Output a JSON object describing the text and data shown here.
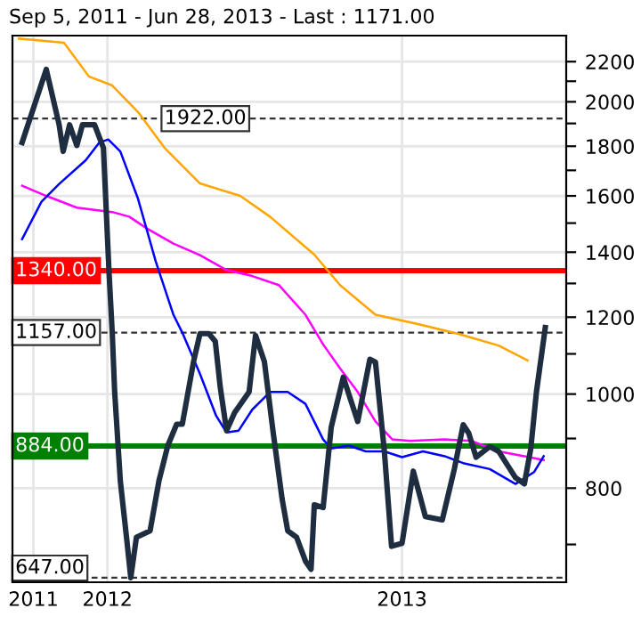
{
  "chart_data": {
    "type": "line",
    "title": "Sep 5, 2011 - Jun 28, 2013 - Last : 1171.00",
    "series": [
      {
        "color": "#ffa500",
        "x": [
          "2011-09-13",
          "2011-11-08",
          "2011-12-09",
          "2012-01-07",
          "2012-02-08",
          "2012-03-12",
          "2012-04-25",
          "2012-06-14",
          "2012-07-21",
          "2012-09-14",
          "2012-10-16",
          "2012-11-29",
          "2013-01-22",
          "2013-03-11",
          "2013-05-01",
          "2013-06-06"
        ],
        "values": [
          2324,
          2301,
          2124,
          2079,
          1952,
          1793,
          1648,
          1600,
          1523,
          1392,
          1295,
          1207,
          1180,
          1154,
          1122,
          1083
        ]
      },
      {
        "color": "#ff00ff",
        "x": [
          "2011-09-17",
          "2011-10-17",
          "2011-11-24",
          "2012-01-07",
          "2012-01-28",
          "2012-02-19",
          "2012-03-23",
          "2012-04-25",
          "2012-05-28",
          "2012-06-29",
          "2012-08-01",
          "2012-09-03",
          "2012-09-25",
          "2012-10-16",
          "2012-11-07",
          "2012-11-29",
          "2012-12-20",
          "2013-01-11",
          "2013-02-23",
          "2013-03-28",
          "2013-05-01",
          "2013-06-02",
          "2013-06-26"
        ],
        "values": [
          1639,
          1600,
          1556,
          1540,
          1523,
          1481,
          1429,
          1390,
          1342,
          1323,
          1295,
          1207,
          1125,
          1063,
          1005,
          937,
          898,
          895,
          898,
          895,
          873,
          863,
          855
        ]
      },
      {
        "color": "#0000ff",
        "x": [
          "2011-09-17",
          "2011-10-11",
          "2011-11-02",
          "2011-12-05",
          "2011-12-22",
          "2012-01-02",
          "2012-01-17",
          "2012-02-08",
          "2012-03-01",
          "2012-03-23",
          "2012-04-03",
          "2012-04-25",
          "2012-05-15",
          "2012-05-28",
          "2012-06-12",
          "2012-06-29",
          "2012-07-21",
          "2012-08-12",
          "2012-09-03",
          "2012-09-25",
          "2012-10-05",
          "2012-10-27",
          "2012-11-17",
          "2012-12-10",
          "2013-01-01",
          "2013-01-27",
          "2013-02-23",
          "2013-03-18",
          "2013-04-20",
          "2013-05-22",
          "2013-06-14",
          "2013-06-26"
        ],
        "values": [
          1444,
          1578,
          1646,
          1741,
          1816,
          1829,
          1778,
          1589,
          1370,
          1207,
          1157,
          1049,
          950,
          913,
          917,
          964,
          1005,
          1005,
          977,
          898,
          879,
          885,
          873,
          873,
          861,
          873,
          863,
          849,
          837,
          808,
          831,
          863
        ]
      },
      {
        "color": "#1e2d40",
        "x": [
          "2011-09-17",
          "2011-10-17",
          "2011-11-02",
          "2011-11-07",
          "2011-11-15",
          "2011-11-24",
          "2011-12-01",
          "2011-12-16",
          "2011-12-27",
          "2012-01-03",
          "2012-01-07",
          "2012-01-10",
          "2012-01-17",
          "2012-01-25",
          "2012-01-30",
          "2012-02-06",
          "2012-02-23",
          "2012-03-05",
          "2012-03-16",
          "2012-03-27",
          "2012-04-03",
          "2012-04-17",
          "2012-04-25",
          "2012-05-06",
          "2012-05-14",
          "2012-05-20",
          "2012-05-28",
          "2012-06-07",
          "2012-06-25",
          "2012-07-03",
          "2012-07-14",
          "2012-07-25",
          "2012-08-05",
          "2012-08-12",
          "2012-08-23",
          "2012-09-03",
          "2012-09-10",
          "2012-09-14",
          "2012-09-25",
          "2012-10-05",
          "2012-10-20",
          "2012-11-07",
          "2012-11-22",
          "2012-11-29",
          "2012-12-10",
          "2012-12-19",
          "2013-01-01",
          "2013-01-15",
          "2013-01-30",
          "2013-02-20",
          "2013-03-07",
          "2013-03-18",
          "2013-03-25",
          "2013-04-03",
          "2013-04-20",
          "2013-05-01",
          "2013-05-22",
          "2013-06-02",
          "2013-06-10",
          "2013-06-17",
          "2013-06-28"
        ],
        "values": [
          1816,
          2160,
          1894,
          1778,
          1894,
          1803,
          1894,
          1894,
          1793,
          1334,
          1155,
          1005,
          814,
          708,
          647,
          712,
          723,
          814,
          885,
          931,
          931,
          1080,
          1154,
          1154,
          1133,
          1019,
          917,
          957,
          1005,
          1149,
          1080,
          912,
          780,
          723,
          712,
          673,
          660,
          769,
          764,
          924,
          1041,
          937,
          1086,
          1079,
          874,
          697,
          702,
          833,
          748,
          742,
          837,
          930,
          911,
          861,
          883,
          873,
          820,
          808,
          879,
          1005,
          1171
        ]
      }
    ],
    "ref_lines": [
      {
        "axis": "y",
        "value": 1922,
        "label": "1922.00",
        "line_style": "dashed"
      },
      {
        "axis": "y",
        "value": 1340,
        "label": "1340.00",
        "color": "#ff0000",
        "line_style": "solid"
      },
      {
        "axis": "y",
        "value": 1157,
        "label": "1157.00",
        "line_style": "dashed"
      },
      {
        "axis": "y",
        "value": 884,
        "label": "884.00",
        "color": "#008000",
        "line_style": "solid"
      },
      {
        "axis": "y",
        "value": 647,
        "label": "647.00",
        "line_style": "dashed"
      }
    ],
    "log": "y",
    "xlim": [
      "2011-09-05",
      "2013-07-24"
    ],
    "xticks": [
      {
        "value": "2011-10-01",
        "label": "2011"
      },
      {
        "value": "2012-01-01",
        "label": "2012"
      },
      {
        "value": "2013-01-01",
        "label": "2013"
      }
    ],
    "ylim": [
      640,
      2340
    ],
    "yticks": [
      {
        "value": 700,
        "label": null
      },
      800,
      {
        "value": 900,
        "label": null
      },
      1000,
      {
        "value": 1100,
        "label": null
      },
      1200,
      {
        "value": 1300,
        "label": null
      },
      1400,
      {
        "value": 1500,
        "label": null
      },
      1600,
      {
        "value": 1700,
        "label": null
      },
      1800,
      {
        "value": 1900,
        "label": null
      },
      2000,
      {
        "value": 2100,
        "label": null
      },
      2200
    ],
    "grid": true,
    "line_style": "solid"
  }
}
